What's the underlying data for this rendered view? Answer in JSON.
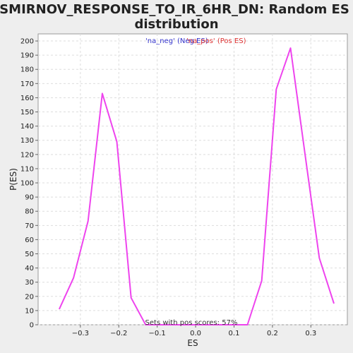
{
  "chart_data": {
    "type": "line",
    "title_line1": "SMIRNOV_RESPONSE_TO_IR_6HR_DN: Random ES",
    "title_line2": "distribution",
    "xlabel": "ES",
    "ylabel": "P(ES)",
    "xlim": [
      -0.41,
      0.395
    ],
    "ylim": [
      0,
      205
    ],
    "x_ticks": [
      -0.3,
      -0.2,
      -0.1,
      0.0,
      0.1,
      0.2,
      0.3
    ],
    "x_tick_labels": [
      "−0.3",
      "−0.2",
      "−0.1",
      "0.0",
      "0.1",
      "0.2",
      "0.3"
    ],
    "y_ticks": [
      0,
      10,
      20,
      30,
      40,
      50,
      60,
      70,
      80,
      90,
      100,
      110,
      120,
      130,
      140,
      150,
      160,
      170,
      180,
      190,
      200
    ],
    "grid": true,
    "legend": [
      {
        "label": "'na_neg' (Neg ES)",
        "color": "#3333cc"
      },
      {
        "label": "'na_pos' (Pos ES)",
        "color": "#dd3333"
      }
    ],
    "legend_placement": "top-center",
    "annotation": "Sets with pos scores: 57%",
    "series": [
      {
        "color": "#ee44ee",
        "x": [
          -0.355,
          -0.318,
          -0.28,
          -0.243,
          -0.205,
          -0.168,
          -0.13,
          0.135,
          0.172,
          0.21,
          0.247,
          0.285,
          0.322,
          0.36
        ],
        "y": [
          11,
          33,
          73,
          163,
          129,
          19,
          0,
          0,
          31,
          166,
          195,
          120,
          47,
          15
        ]
      }
    ]
  }
}
